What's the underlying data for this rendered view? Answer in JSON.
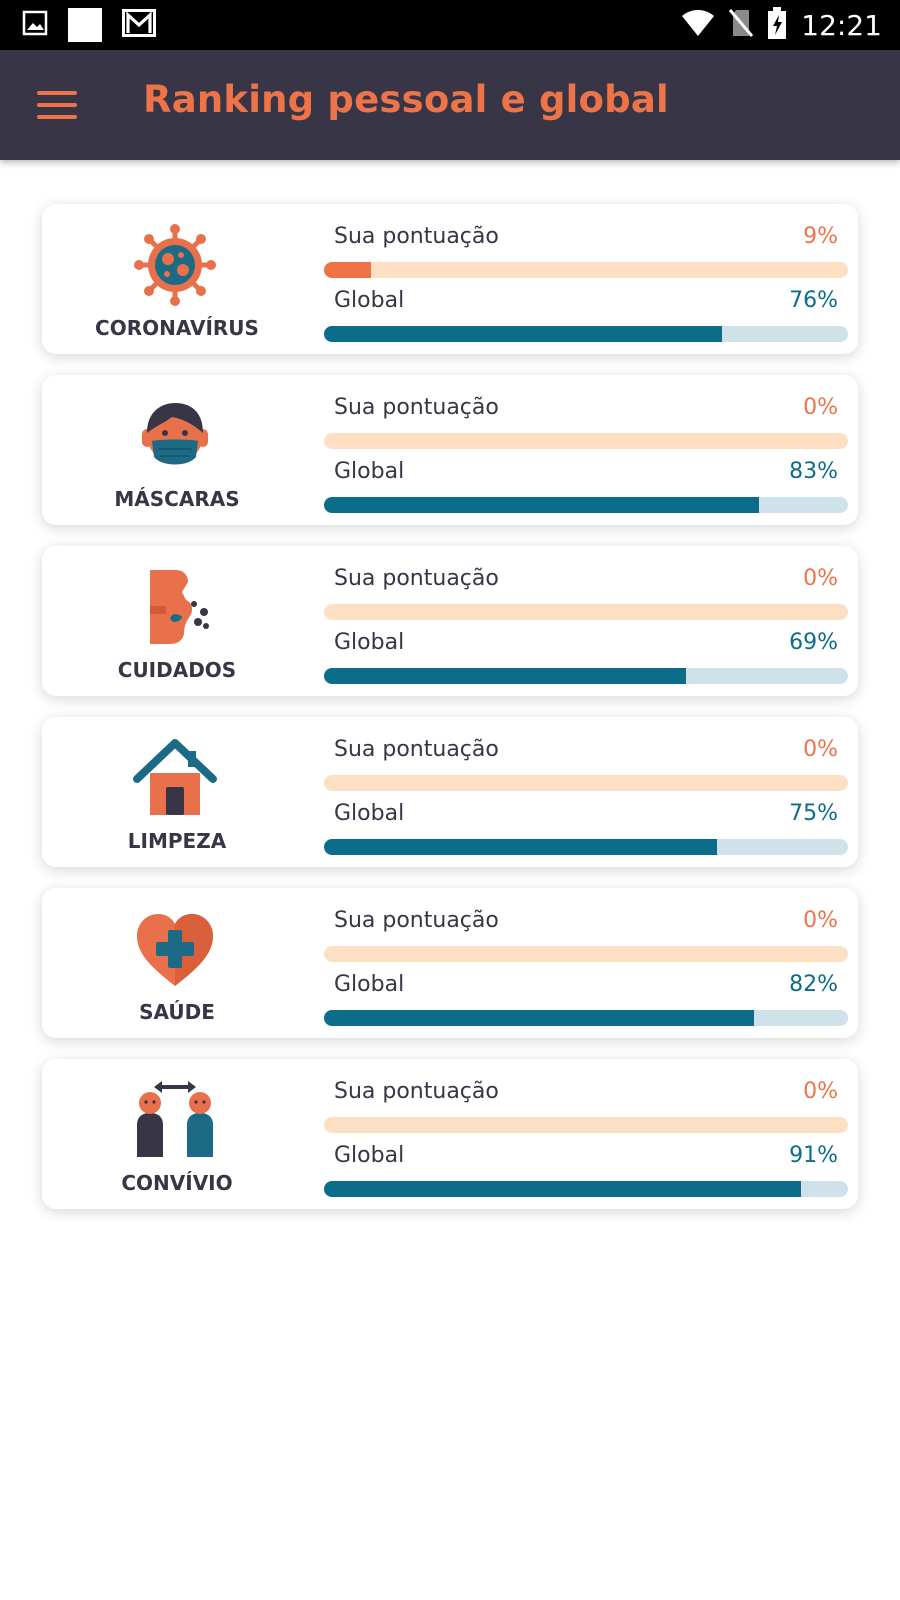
{
  "status_bar": {
    "time": "12:21",
    "icons": [
      "image-icon",
      "white-square-icon",
      "gmail-icon",
      "wifi-icon",
      "no-sim-icon",
      "battery-icon"
    ]
  },
  "app_bar": {
    "title": "Ranking pessoal e global",
    "menu_icon": "hamburger-menu-icon"
  },
  "colors": {
    "app_bar_bg": "#373546",
    "accent_orange": "#ee7447",
    "accent_teal": "#0b6d89",
    "personal_track": "#fde0c3",
    "global_track": "#cfe1e9"
  },
  "categories": [
    {
      "name": "CORONAVÍRUS",
      "icon": "virus-icon",
      "personal_label": "Sua pontuação",
      "personal_value": "9%",
      "personal_fraction": 0.09,
      "global_label": "Global",
      "global_value": "76%",
      "global_fraction": 0.76
    },
    {
      "name": "MÁSCARAS",
      "icon": "face-mask-icon",
      "personal_label": "Sua pontuação",
      "personal_value": "0%",
      "personal_fraction": 0.0,
      "global_label": "Global",
      "global_value": "83%",
      "global_fraction": 0.83
    },
    {
      "name": "CUIDADOS",
      "icon": "sneeze-icon",
      "personal_label": "Sua pontuação",
      "personal_value": "0%",
      "personal_fraction": 0.0,
      "global_label": "Global",
      "global_value": "69%",
      "global_fraction": 0.69
    },
    {
      "name": "LIMPEZA",
      "icon": "house-icon",
      "personal_label": "Sua pontuação",
      "personal_value": "0%",
      "personal_fraction": 0.0,
      "global_label": "Global",
      "global_value": "75%",
      "global_fraction": 0.75
    },
    {
      "name": "SAÚDE",
      "icon": "heart-cross-icon",
      "personal_label": "Sua pontuação",
      "personal_value": "0%",
      "personal_fraction": 0.0,
      "global_label": "Global",
      "global_value": "82%",
      "global_fraction": 0.82
    },
    {
      "name": "CONVÍVIO",
      "icon": "social-distance-icon",
      "personal_label": "Sua pontuação",
      "personal_value": "0%",
      "personal_fraction": 0.0,
      "global_label": "Global",
      "global_value": "91%",
      "global_fraction": 0.91
    }
  ]
}
